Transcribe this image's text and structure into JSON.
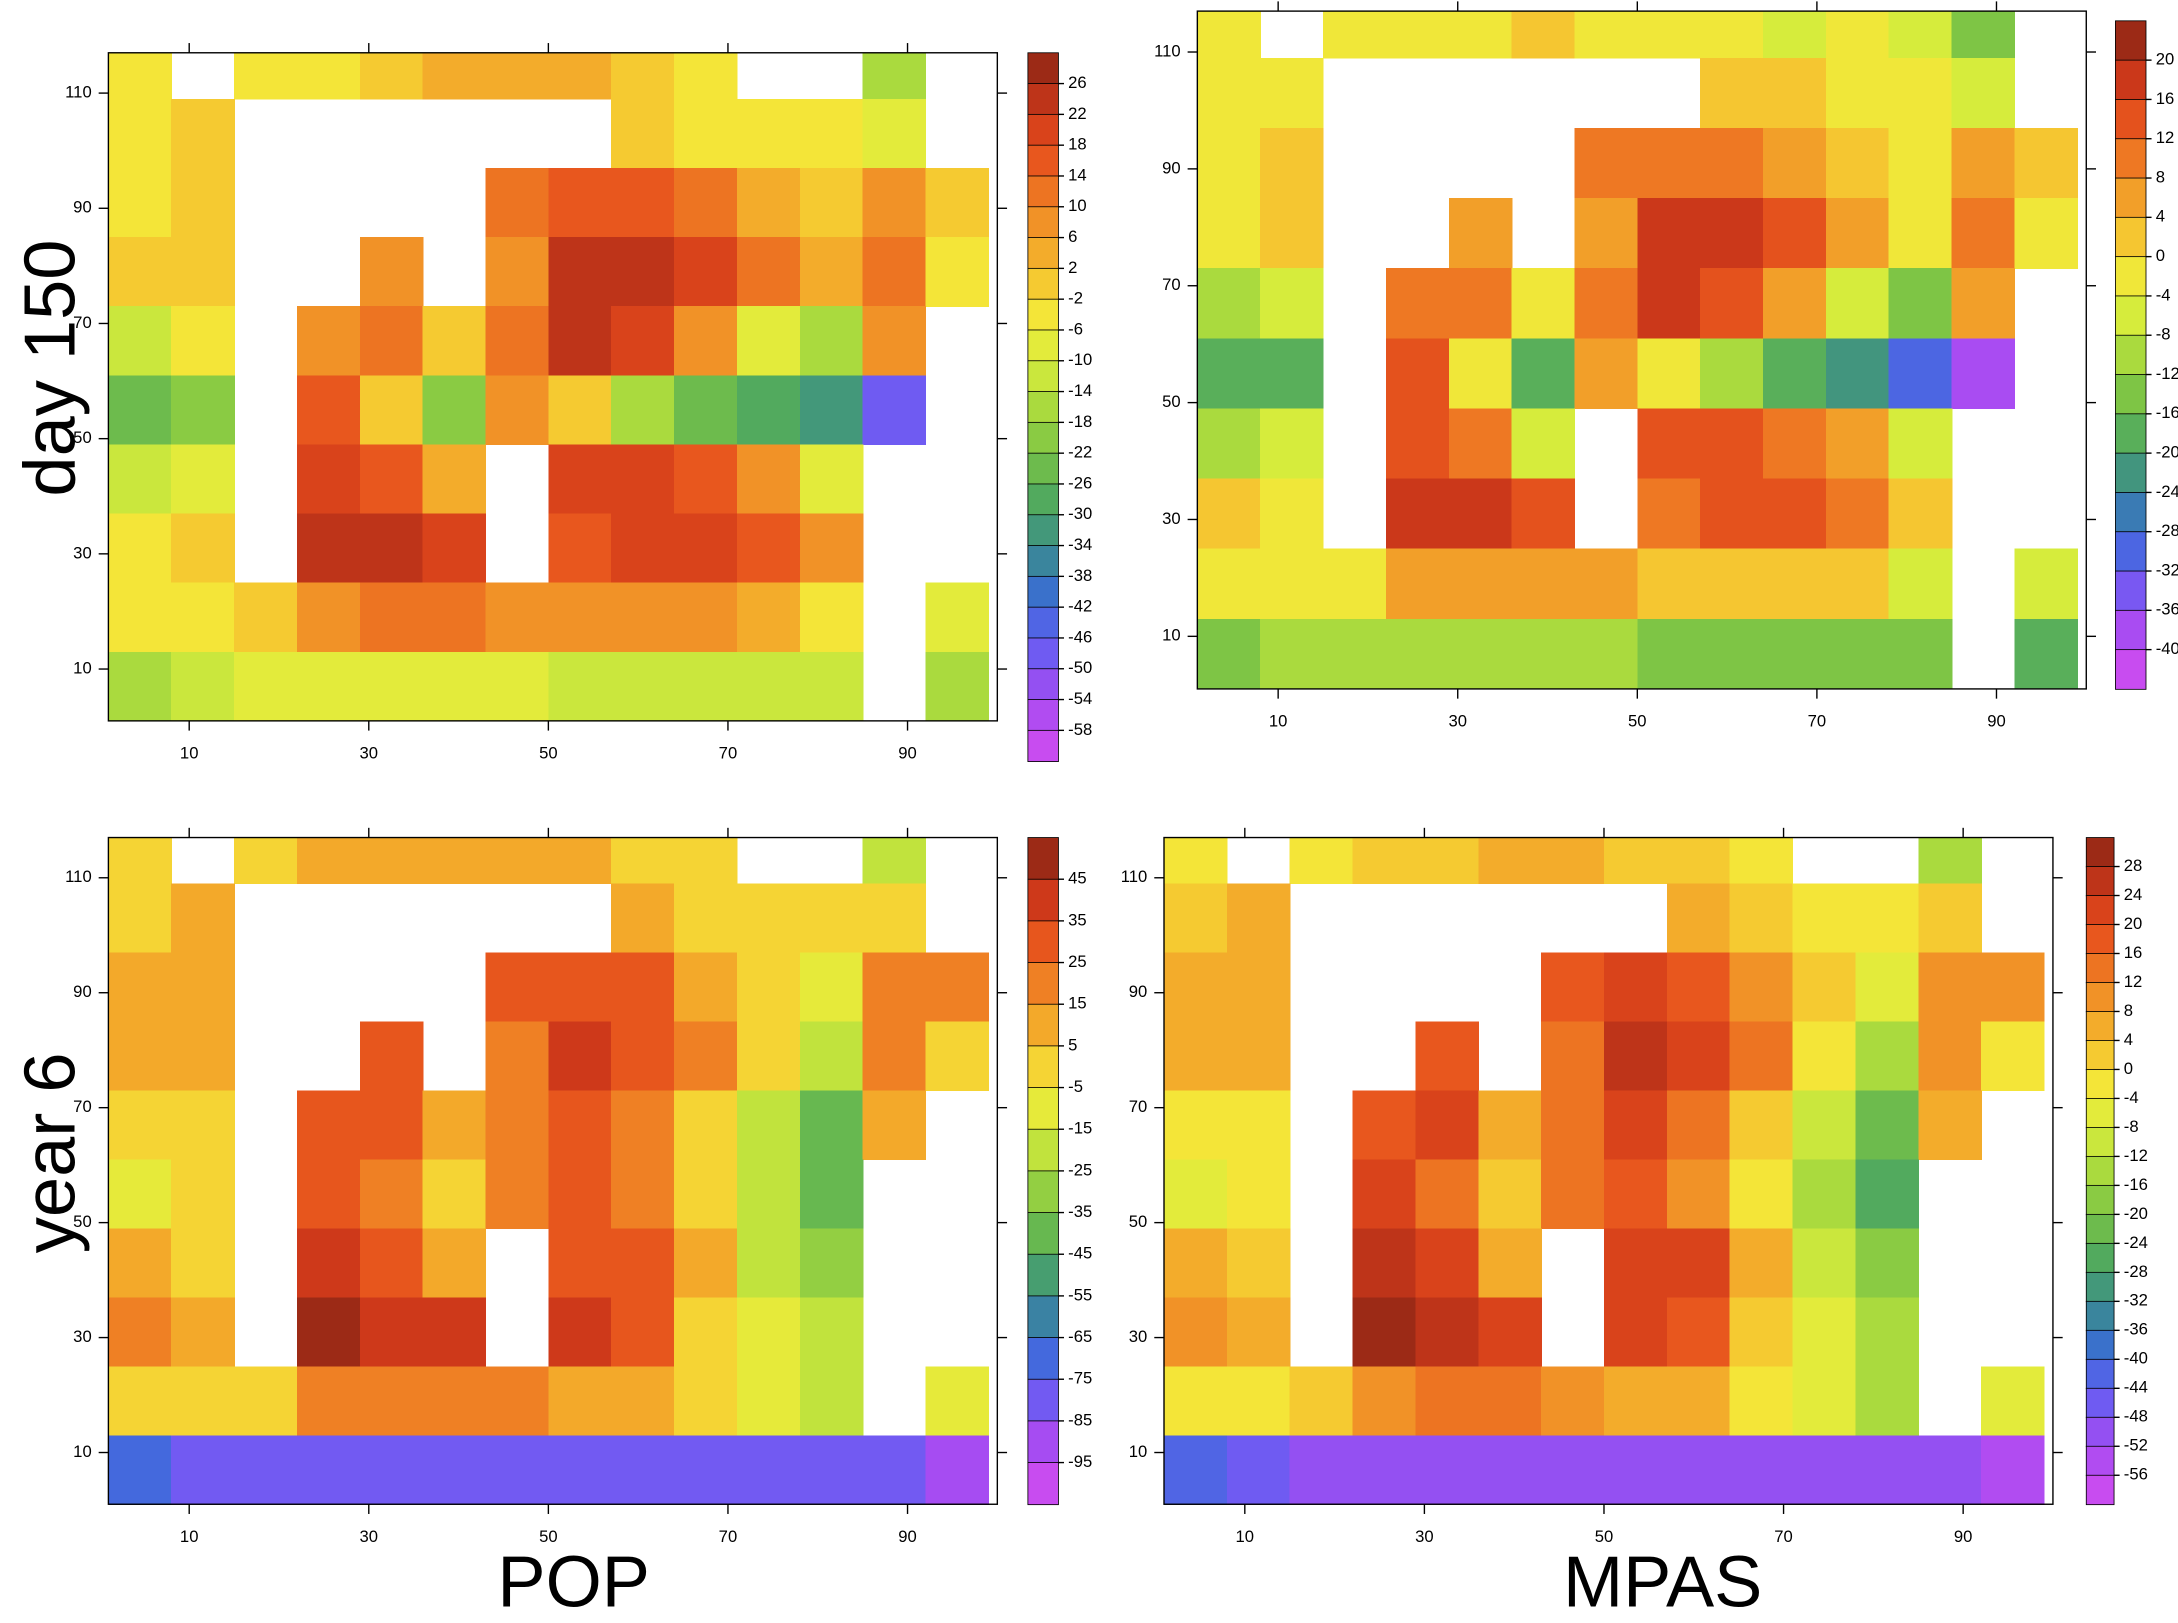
{
  "palette": [
    "#9c2a16",
    "#d23a1a",
    "#ea5a1e",
    "#f08a26",
    "#f4b42c",
    "#f6e438",
    "#dcee3c",
    "#aada3e",
    "#78c246",
    "#4ea860",
    "#3a8a90",
    "#3a6cd8",
    "#6a5cf2",
    "#a44cf2",
    "#c84cf0"
  ],
  "row_labels": [
    "day 150",
    "year 6"
  ],
  "column_labels": [
    "POP",
    "MPAS"
  ],
  "chart_data": [
    {
      "type": "heatmap",
      "xlim": [
        1,
        100
      ],
      "ylim": [
        1,
        117
      ],
      "xticks": [
        10,
        30,
        50,
        70,
        90
      ],
      "yticks": [
        10,
        30,
        50,
        70,
        90,
        110
      ],
      "xbins": [
        1,
        8,
        15,
        22,
        29,
        36,
        43,
        50,
        57,
        64,
        71,
        78,
        85,
        92,
        99
      ],
      "ybins": [
        117,
        109,
        97,
        85,
        73,
        61,
        49,
        37,
        25,
        13,
        1
      ],
      "levels": [
        26,
        22,
        18,
        14,
        10,
        6,
        2,
        -2,
        -6,
        -10,
        -14,
        -18,
        -22,
        -26,
        -30,
        -34,
        -38,
        -42,
        -46,
        -50,
        -54,
        -58
      ],
      "values": [
        [
          -6,
          null,
          -6,
          -4,
          0,
          2,
          2,
          2,
          -2,
          -6,
          null,
          null,
          -18,
          null
        ],
        [
          -4,
          -2,
          null,
          null,
          null,
          null,
          null,
          null,
          -2,
          -6,
          -6,
          -4,
          -10,
          null
        ],
        [
          -4,
          -2,
          null,
          null,
          null,
          null,
          10,
          14,
          14,
          10,
          2,
          -2,
          6,
          0
        ],
        [
          -2,
          0,
          null,
          null,
          8,
          null,
          6,
          22,
          22,
          18,
          10,
          2,
          10,
          -4
        ],
        [
          -14,
          -6,
          null,
          8,
          10,
          -2,
          10,
          22,
          18,
          6,
          -10,
          -18,
          6,
          null
        ],
        [
          -26,
          -22,
          null,
          14,
          -2,
          -22,
          6,
          -2,
          -18,
          -26,
          -30,
          -34,
          -50,
          null
        ],
        [
          -14,
          -10,
          null,
          18,
          14,
          2,
          null,
          18,
          18,
          14,
          6,
          -10,
          null,
          null
        ],
        [
          -6,
          -2,
          null,
          22,
          22,
          18,
          null,
          14,
          18,
          18,
          14,
          6,
          null,
          null
        ],
        [
          -6,
          -4,
          -2,
          6,
          10,
          10,
          6,
          6,
          6,
          6,
          2,
          -6,
          null,
          -10
        ],
        [
          -18,
          -14,
          -10,
          -10,
          -10,
          -10,
          -10,
          -14,
          -14,
          -14,
          -14,
          -14,
          null,
          -18
        ]
      ]
    },
    {
      "type": "heatmap",
      "xlim": [
        1,
        100
      ],
      "ylim": [
        1,
        117
      ],
      "xticks": [
        10,
        30,
        50,
        70,
        90
      ],
      "yticks": [
        10,
        30,
        50,
        70,
        90,
        110
      ],
      "xbins": [
        1,
        8,
        15,
        22,
        29,
        36,
        43,
        50,
        57,
        64,
        71,
        78,
        85,
        92,
        99
      ],
      "ybins": [
        117,
        109,
        97,
        85,
        73,
        61,
        49,
        37,
        25,
        13,
        1
      ],
      "levels": [
        20,
        16,
        12,
        8,
        4,
        0,
        -4,
        -8,
        -12,
        -16,
        -20,
        -24,
        -28,
        -32,
        -36,
        -40
      ],
      "values": [
        [
          -4,
          null,
          -4,
          -4,
          -2,
          0,
          -2,
          -4,
          -4,
          -6,
          -4,
          -8,
          -16,
          null
        ],
        [
          -4,
          -2,
          null,
          null,
          null,
          null,
          null,
          null,
          2,
          0,
          -4,
          -4,
          -6,
          null
        ],
        [
          -2,
          0,
          null,
          null,
          null,
          null,
          8,
          10,
          10,
          6,
          2,
          -4,
          4,
          0
        ],
        [
          -2,
          0,
          null,
          null,
          6,
          null,
          4,
          16,
          16,
          12,
          6,
          -2,
          8,
          -2
        ],
        [
          -10,
          -6,
          null,
          8,
          8,
          -2,
          8,
          16,
          12,
          4,
          -8,
          -14,
          4,
          null
        ],
        [
          -20,
          -18,
          null,
          12,
          -2,
          -18,
          4,
          -2,
          -12,
          -18,
          -24,
          -32,
          -40,
          null
        ],
        [
          -10,
          -6,
          null,
          14,
          8,
          -8,
          null,
          14,
          14,
          10,
          4,
          -8,
          null,
          null
        ],
        [
          0,
          -2,
          null,
          16,
          16,
          12,
          null,
          10,
          12,
          12,
          8,
          2,
          null,
          null
        ],
        [
          -4,
          -4,
          -2,
          4,
          6,
          6,
          4,
          2,
          2,
          2,
          0,
          -6,
          null,
          -8
        ],
        [
          -14,
          -12,
          -10,
          -12,
          -12,
          -10,
          -10,
          -14,
          -14,
          -14,
          -16,
          -16,
          null,
          -18
        ]
      ]
    },
    {
      "type": "heatmap",
      "xlim": [
        1,
        100
      ],
      "ylim": [
        1,
        117
      ],
      "xticks": [
        10,
        30,
        50,
        70,
        90
      ],
      "yticks": [
        10,
        30,
        50,
        70,
        90,
        110
      ],
      "xbins": [
        1,
        8,
        15,
        22,
        29,
        36,
        43,
        50,
        57,
        64,
        71,
        78,
        85,
        92,
        99
      ],
      "ybins": [
        117,
        109,
        97,
        85,
        73,
        61,
        49,
        37,
        25,
        13,
        1
      ],
      "levels": [
        45,
        35,
        25,
        15,
        5,
        -5,
        -15,
        -25,
        -35,
        -45,
        -55,
        -65,
        -75,
        -85,
        -95
      ],
      "values": [
        [
          -5,
          null,
          -5,
          5,
          5,
          10,
          10,
          5,
          0,
          -5,
          null,
          null,
          -25,
          null
        ],
        [
          0,
          5,
          null,
          null,
          null,
          null,
          null,
          null,
          5,
          0,
          -5,
          -5,
          0,
          null
        ],
        [
          5,
          5,
          null,
          null,
          null,
          null,
          25,
          30,
          25,
          10,
          0,
          -15,
          15,
          15
        ],
        [
          5,
          5,
          null,
          null,
          25,
          null,
          20,
          35,
          30,
          15,
          -5,
          -25,
          15,
          -5
        ],
        [
          -5,
          -5,
          null,
          25,
          30,
          5,
          20,
          30,
          20,
          0,
          -20,
          -40,
          5,
          null
        ],
        [
          -10,
          -5,
          null,
          30,
          20,
          0,
          20,
          25,
          15,
          -5,
          -25,
          -40,
          null,
          null
        ],
        [
          5,
          0,
          null,
          35,
          30,
          5,
          null,
          30,
          30,
          5,
          -20,
          -35,
          null,
          null
        ],
        [
          15,
          5,
          null,
          45,
          40,
          35,
          null,
          35,
          25,
          0,
          -15,
          -25,
          null,
          null
        ],
        [
          -5,
          -5,
          0,
          15,
          20,
          20,
          15,
          10,
          5,
          -5,
          -15,
          -25,
          null,
          -15
        ],
        [
          -75,
          -85,
          -85,
          -85,
          -85,
          -85,
          -85,
          -85,
          -85,
          -85,
          -85,
          -85,
          -85,
          -95
        ]
      ]
    },
    {
      "type": "heatmap",
      "xlim": [
        1,
        100
      ],
      "ylim": [
        1,
        117
      ],
      "xticks": [
        10,
        30,
        50,
        70,
        90
      ],
      "yticks": [
        10,
        30,
        50,
        70,
        90,
        110
      ],
      "xbins": [
        1,
        8,
        15,
        22,
        29,
        36,
        43,
        50,
        57,
        64,
        71,
        78,
        85,
        92,
        99
      ],
      "ybins": [
        117,
        109,
        97,
        85,
        73,
        61,
        49,
        37,
        25,
        13,
        1
      ],
      "levels": [
        28,
        24,
        20,
        16,
        12,
        8,
        4,
        0,
        -4,
        -8,
        -12,
        -16,
        -20,
        -24,
        -28,
        -32,
        -36,
        -40,
        -44,
        -48,
        -52,
        -56
      ],
      "values": [
        [
          -4,
          null,
          -4,
          0,
          0,
          4,
          4,
          0,
          0,
          -4,
          null,
          null,
          -16,
          null
        ],
        [
          0,
          4,
          null,
          null,
          null,
          null,
          null,
          null,
          4,
          0,
          -4,
          -4,
          0,
          null
        ],
        [
          4,
          4,
          null,
          null,
          null,
          null,
          16,
          20,
          16,
          8,
          0,
          -8,
          8,
          8
        ],
        [
          4,
          4,
          null,
          null,
          16,
          null,
          12,
          24,
          20,
          12,
          -4,
          -16,
          8,
          -4
        ],
        [
          -4,
          -4,
          null,
          16,
          20,
          4,
          12,
          20,
          12,
          0,
          -12,
          -24,
          4,
          null
        ],
        [
          -8,
          -4,
          null,
          20,
          12,
          0,
          12,
          16,
          8,
          -4,
          -16,
          -28,
          null,
          null
        ],
        [
          4,
          0,
          null,
          24,
          20,
          4,
          null,
          20,
          20,
          4,
          -12,
          -20,
          null,
          null
        ],
        [
          8,
          4,
          null,
          28,
          24,
          20,
          null,
          20,
          16,
          0,
          -8,
          -16,
          null,
          null
        ],
        [
          -4,
          -4,
          0,
          8,
          12,
          12,
          8,
          4,
          4,
          -4,
          -8,
          -16,
          null,
          -8
        ],
        [
          -44,
          -48,
          -52,
          -52,
          -52,
          -52,
          -52,
          -52,
          -52,
          -52,
          -52,
          -52,
          -52,
          -56
        ]
      ]
    }
  ]
}
